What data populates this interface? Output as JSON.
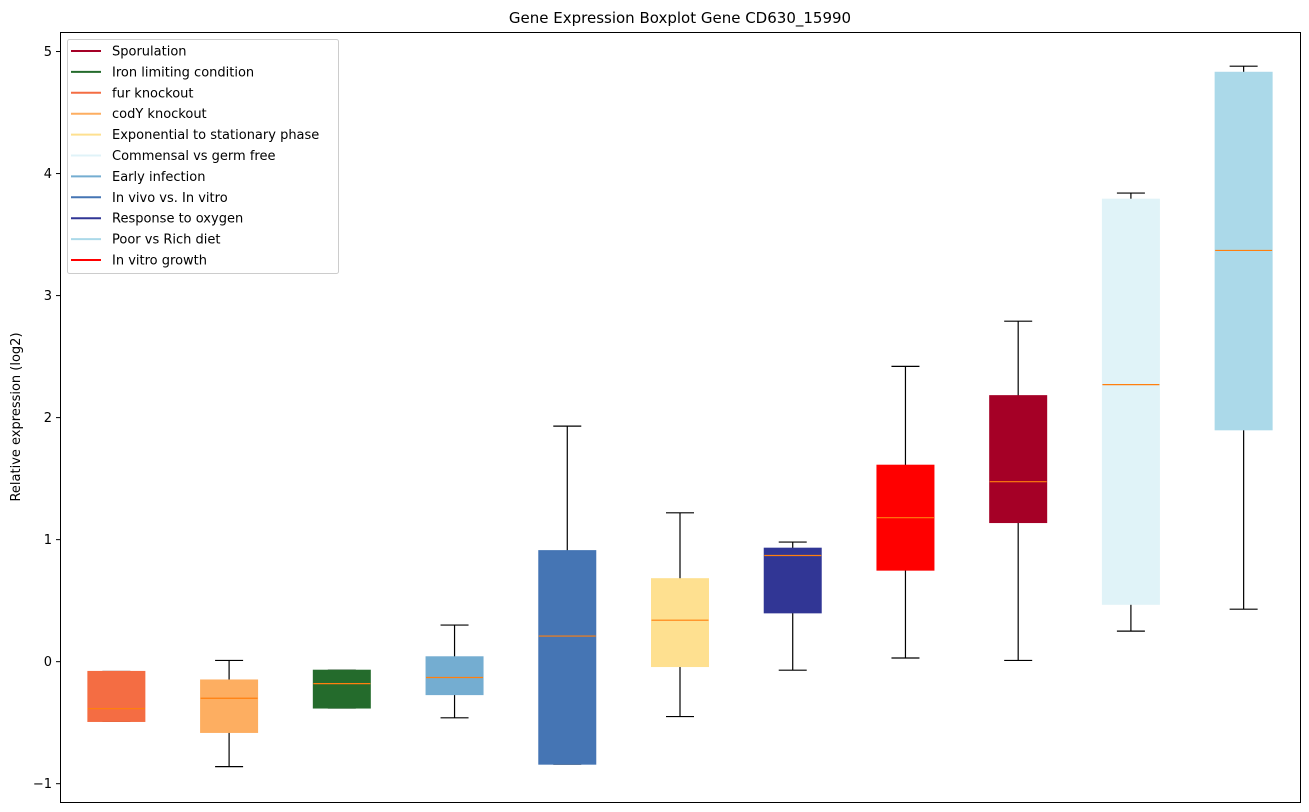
{
  "chart_data": {
    "type": "boxplot",
    "title": "Gene Expression Boxplot Gene CD630_15990",
    "xlabel": "",
    "ylabel": "Relative expression (log2)",
    "ylim": [
      -1.15,
      5.16
    ],
    "yticks": [
      -1,
      0,
      1,
      2,
      3,
      4,
      5
    ],
    "grid": false,
    "legend_position": "top-left",
    "legend": [
      {
        "label": "Sporulation",
        "color": "#a50026"
      },
      {
        "label": "Iron limiting condition",
        "color": "#246b2c"
      },
      {
        "label": "fur knockout",
        "color": "#f46d43"
      },
      {
        "label": "codY knockout",
        "color": "#fdae61"
      },
      {
        "label": "Exponential to stationary phase",
        "color": "#fee090"
      },
      {
        "label": "Commensal vs germ free",
        "color": "#e0f3f8"
      },
      {
        "label": "Early infection",
        "color": "#74add1"
      },
      {
        "label": "In vivo vs. In vitro",
        "color": "#4575b4"
      },
      {
        "label": "Response to oxygen",
        "color": "#313695"
      },
      {
        "label": "Poor vs Rich diet",
        "color": "#abd9e9"
      },
      {
        "label": "In vitro growth",
        "color": "#ff0000"
      }
    ],
    "boxes": [
      {
        "name": "fur knockout",
        "color": "#f46d43",
        "whisker_low": -0.49,
        "q1": -0.49,
        "median": -0.385,
        "q3": -0.08,
        "whisker_high": -0.08
      },
      {
        "name": "codY knockout",
        "color": "#fdae61",
        "whisker_low": -0.86,
        "q1": -0.58,
        "median": -0.3,
        "q3": -0.15,
        "whisker_high": 0.01
      },
      {
        "name": "Iron limiting condition",
        "color": "#246b2c",
        "whisker_low": -0.38,
        "q1": -0.38,
        "median": -0.18,
        "q3": -0.07,
        "whisker_high": -0.07
      },
      {
        "name": "Early infection",
        "color": "#74add1",
        "whisker_low": -0.46,
        "q1": -0.27,
        "median": -0.13,
        "q3": 0.04,
        "whisker_high": 0.3
      },
      {
        "name": "In vivo vs. In vitro",
        "color": "#4575b4",
        "whisker_low": -0.84,
        "q1": -0.84,
        "median": 0.21,
        "q3": 0.91,
        "whisker_high": 1.93
      },
      {
        "name": "Exponential to stationary phase",
        "color": "#fee090",
        "whisker_low": -0.45,
        "q1": -0.04,
        "median": 0.34,
        "q3": 0.68,
        "whisker_high": 1.22
      },
      {
        "name": "Response to oxygen",
        "color": "#313695",
        "whisker_low": -0.07,
        "q1": 0.4,
        "median": 0.87,
        "q3": 0.93,
        "whisker_high": 0.98
      },
      {
        "name": "In vitro growth",
        "color": "#ff0000",
        "whisker_low": 0.03,
        "q1": 0.75,
        "median": 1.18,
        "q3": 1.61,
        "whisker_high": 2.42
      },
      {
        "name": "Sporulation",
        "color": "#a50026",
        "whisker_low": 0.01,
        "q1": 1.14,
        "median": 1.475,
        "q3": 2.18,
        "whisker_high": 2.79
      },
      {
        "name": "Commensal vs germ free",
        "color": "#e0f3f8",
        "whisker_low": 0.25,
        "q1": 0.47,
        "median": 2.27,
        "q3": 3.79,
        "whisker_high": 3.84
      },
      {
        "name": "Poor vs Rich diet",
        "color": "#abd9e9",
        "whisker_low": 0.43,
        "q1": 1.9,
        "median": 3.37,
        "q3": 4.83,
        "whisker_high": 4.88
      }
    ],
    "median_color": "#ff7f0e"
  }
}
